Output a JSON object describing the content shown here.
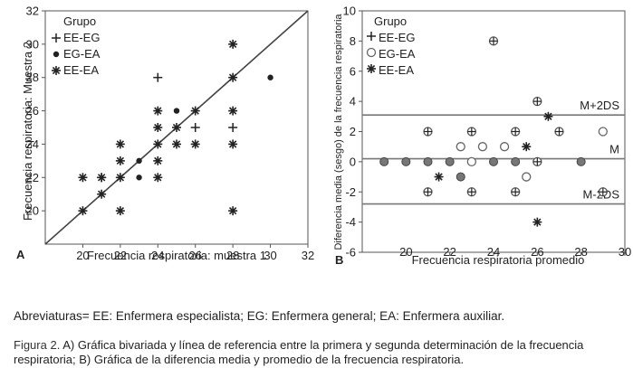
{
  "chart_data": [
    {
      "type": "scatter",
      "panel_label": "A",
      "title": "",
      "xlabel": "Frecuencia respiratoria: muestra 1",
      "ylabel": "Frecuencia respiratoria: Muestra 2",
      "xlim": [
        18,
        32
      ],
      "ylim": [
        18,
        32
      ],
      "xticks": [
        20,
        22,
        24,
        26,
        28,
        30,
        32
      ],
      "yticks": [
        20,
        22,
        24,
        26,
        28,
        30,
        32
      ],
      "reference_line": {
        "from": [
          18,
          18
        ],
        "to": [
          32,
          32
        ]
      },
      "legend": {
        "title": "Grupo",
        "position": "top-left"
      },
      "series": [
        {
          "name": "EE-EG",
          "marker": "plus",
          "points": [
            [
              24,
              28
            ],
            [
              28,
              25
            ],
            [
              26,
              25
            ],
            [
              21,
              22
            ]
          ]
        },
        {
          "name": "EG-EA",
          "marker": "dot",
          "points": [
            [
              23,
              23
            ],
            [
              23,
              22
            ],
            [
              25,
              26
            ],
            [
              30,
              28
            ]
          ]
        },
        {
          "name": "EE-EA",
          "marker": "star",
          "points": [
            [
              20,
              20
            ],
            [
              20,
              22
            ],
            [
              21,
              21
            ],
            [
              21,
              22
            ],
            [
              22,
              20
            ],
            [
              22,
              22
            ],
            [
              22,
              23
            ],
            [
              22,
              24
            ],
            [
              24,
              22
            ],
            [
              24,
              23
            ],
            [
              24,
              24
            ],
            [
              24,
              25
            ],
            [
              24,
              26
            ],
            [
              25,
              24
            ],
            [
              25,
              25
            ],
            [
              26,
              24
            ],
            [
              26,
              26
            ],
            [
              28,
              20
            ],
            [
              28,
              24
            ],
            [
              28,
              26
            ],
            [
              28,
              28
            ],
            [
              28,
              30
            ]
          ]
        }
      ]
    },
    {
      "type": "scatter",
      "panel_label": "B",
      "title": "",
      "xlabel": "Frecuencia respiratoria promedio",
      "ylabel": "Diferencia media (sesgo) de la frecuencia respiratoria",
      "xlim": [
        18,
        30
      ],
      "ylim": [
        -6,
        10
      ],
      "xticks": [
        20,
        22,
        24,
        26,
        28,
        30
      ],
      "yticks": [
        -6,
        -4,
        -2,
        0,
        2,
        4,
        6,
        8,
        10
      ],
      "reference_lines": [
        {
          "label": "M+2DS",
          "y": 3.1
        },
        {
          "label": "M",
          "y": 0.2
        },
        {
          "label": "M-2DS",
          "y": -2.8
        }
      ],
      "legend": {
        "title": "Grupo",
        "position": "top-left"
      },
      "series": [
        {
          "name": "EE-EG",
          "marker": "circle-plus",
          "points": [
            [
              21,
              2
            ],
            [
              21,
              -2
            ],
            [
              23,
              2
            ],
            [
              23,
              -2
            ],
            [
              25,
              2
            ],
            [
              25,
              -2
            ],
            [
              26,
              0
            ],
            [
              27,
              2
            ],
            [
              24,
              8
            ],
            [
              26,
              4
            ],
            [
              29,
              -2
            ]
          ]
        },
        {
          "name": "EG-EA",
          "marker": "circle",
          "points": [
            [
              22.5,
              1
            ],
            [
              23,
              0
            ],
            [
              23.5,
              1
            ],
            [
              24.5,
              1
            ],
            [
              25.5,
              -1
            ],
            [
              29,
              2
            ]
          ]
        },
        {
          "name": "EE-EA",
          "marker": "circle-dot",
          "points": [
            [
              19,
              0
            ],
            [
              20,
              0
            ],
            [
              21,
              0
            ],
            [
              22,
              0
            ],
            [
              22.5,
              -1
            ],
            [
              24,
              0
            ],
            [
              25,
              0
            ],
            [
              28,
              0
            ]
          ]
        },
        {
          "name": "EE-EA",
          "marker": "star",
          "points": [
            [
              21.5,
              -1
            ],
            [
              25.5,
              1
            ],
            [
              26.5,
              3
            ],
            [
              26,
              -4
            ]
          ]
        }
      ]
    }
  ],
  "abbreviations": "Abreviaturas= EE: Enfermera especialista; EG: Enfermera general; EA: Enfermera auxiliar.",
  "caption": {
    "lead": "Figura 2.",
    "line1": " A) Gráfica bivariada y línea de referencia entre la primera y segunda determinación de la frecuencia",
    "line2": "respiratoria; B) Gráfica de la diferencia media y promedio de la frecuencia respiratoria."
  },
  "colors": {
    "ink": "#222222",
    "axis": "#555555",
    "marker_fill": "#ffffff"
  }
}
